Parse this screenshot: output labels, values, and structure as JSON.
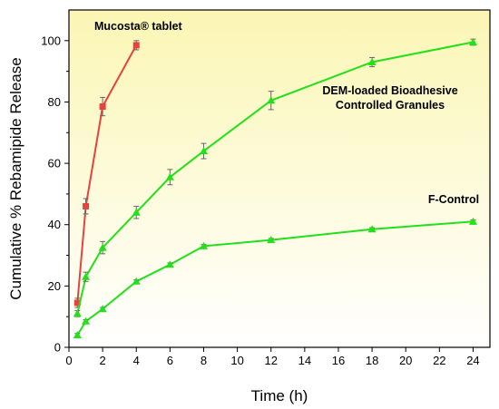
{
  "chart_data": {
    "type": "line",
    "title": "",
    "xlabel": "Time (h)",
    "ylabel": "Cumulative % Rebamipide Release",
    "xlim": [
      0,
      25
    ],
    "ylim": [
      0,
      110
    ],
    "xticks": [
      0,
      2,
      4,
      6,
      8,
      10,
      12,
      14,
      16,
      18,
      20,
      22,
      24
    ],
    "yticks": [
      0,
      20,
      40,
      60,
      80,
      100
    ],
    "grid": false,
    "legend": "none",
    "background": "vertical gradient from light yellow (top) to white (bottom)",
    "series": [
      {
        "label_lines": [
          "Mucosta® tablet"
        ],
        "color": "#e8413e",
        "marker": "square",
        "x": [
          0.5,
          1,
          2,
          4
        ],
        "y": [
          14.5,
          46,
          78.5,
          98.5
        ],
        "err": [
          1.5,
          2.5,
          3,
          1.5
        ]
      },
      {
        "label_lines": [
          "DEM-loaded Bioadhesive",
          "Controlled Granules"
        ],
        "color": "#22e01a",
        "marker": "triangle",
        "x": [
          0.5,
          1,
          2,
          4,
          6,
          8,
          12,
          18,
          24
        ],
        "y": [
          11,
          23,
          32.5,
          44,
          55.5,
          64,
          80.5,
          93,
          99.5
        ],
        "err": [
          1,
          1.5,
          2,
          2,
          2.5,
          2.5,
          3,
          1.5,
          1
        ]
      },
      {
        "label_lines": [
          "F-Control"
        ],
        "color": "#22e01a",
        "marker": "triangle",
        "x": [
          0.5,
          1,
          2,
          4,
          6,
          8,
          12,
          18,
          24
        ],
        "y": [
          4,
          8.5,
          12.5,
          21.5,
          27,
          33,
          35,
          38.5,
          41
        ],
        "err": [
          0.5,
          0.5,
          0.5,
          0.5,
          0.5,
          0.5,
          0.5,
          0.5,
          0.5
        ]
      }
    ]
  }
}
